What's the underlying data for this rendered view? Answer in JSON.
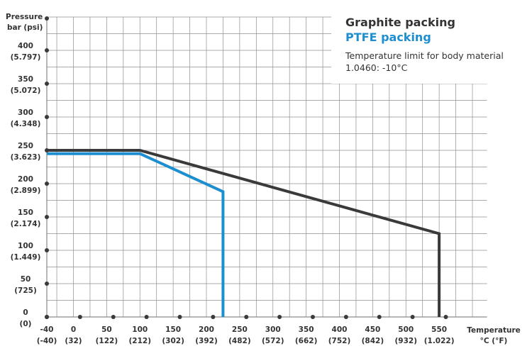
{
  "chart_data": {
    "type": "line",
    "grid": true,
    "xlabel": [
      "Temperature",
      "°C (°F)"
    ],
    "ylabel": [
      "Pressure",
      "bar (psi)"
    ],
    "xlim": [
      -40,
      590
    ],
    "ylim": [
      0,
      450
    ],
    "x_ticks": [
      {
        "value": -40,
        "label": "-40",
        "sub": "(-40)"
      },
      {
        "value": 0,
        "label": "0",
        "sub": "(32)"
      },
      {
        "value": 50,
        "label": "50",
        "sub": "(122)"
      },
      {
        "value": 100,
        "label": "100",
        "sub": "(212)"
      },
      {
        "value": 150,
        "label": "150",
        "sub": "(302)"
      },
      {
        "value": 200,
        "label": "200",
        "sub": "(392)"
      },
      {
        "value": 250,
        "label": "250",
        "sub": "(482)"
      },
      {
        "value": 300,
        "label": "300",
        "sub": "(572)"
      },
      {
        "value": 350,
        "label": "350",
        "sub": "(662)"
      },
      {
        "value": 400,
        "label": "400",
        "sub": "(752)"
      },
      {
        "value": 450,
        "label": "450",
        "sub": "(842)"
      },
      {
        "value": 500,
        "label": "500",
        "sub": "(932)"
      },
      {
        "value": 550,
        "label": "550",
        "sub": "(1.022)"
      }
    ],
    "y_ticks": [
      {
        "value": 0,
        "label": "0",
        "sub": "(0)"
      },
      {
        "value": 50,
        "label": "50",
        "sub": "(725)"
      },
      {
        "value": 100,
        "label": "100",
        "sub": "(1.449)"
      },
      {
        "value": 150,
        "label": "150",
        "sub": "(2.174)"
      },
      {
        "value": 200,
        "label": "200",
        "sub": "(2.899)"
      },
      {
        "value": 250,
        "label": "250",
        "sub": "(3.623)"
      },
      {
        "value": 300,
        "label": "300",
        "sub": "(4.348)"
      },
      {
        "value": 350,
        "label": "350",
        "sub": "(5.072)"
      },
      {
        "value": 400,
        "label": "400",
        "sub": "(5.797)"
      }
    ],
    "series": [
      {
        "name": "Graphite packing",
        "color": "#3a3a3a",
        "points": [
          [
            -40,
            250
          ],
          [
            100,
            250
          ],
          [
            550,
            125
          ],
          [
            550,
            0
          ]
        ]
      },
      {
        "name": "PTFE packing",
        "color": "#1d8fd0",
        "points": [
          [
            -40,
            245
          ],
          [
            100,
            245
          ],
          [
            225,
            188
          ],
          [
            225,
            0
          ]
        ]
      }
    ],
    "legend_placement": "top-right",
    "annotation": [
      "Temperature limit for body material",
      "1.0460: -10°C"
    ]
  }
}
